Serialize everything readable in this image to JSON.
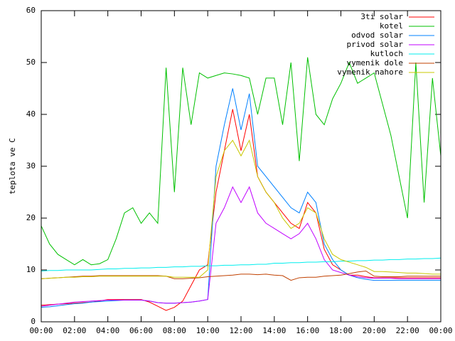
{
  "chart_data": {
    "type": "line",
    "ylabel": "teplota ve C",
    "x": [
      0,
      0.5,
      1,
      1.5,
      2,
      2.5,
      3,
      3.5,
      4,
      4.5,
      5,
      5.5,
      6,
      6.5,
      7,
      7.5,
      8,
      8.5,
      9,
      9.5,
      10,
      10.5,
      11,
      11.5,
      12,
      12.5,
      13,
      13.5,
      14,
      14.5,
      15,
      15.5,
      16,
      16.5,
      17,
      17.5,
      18,
      18.5,
      19,
      19.5,
      20,
      20.5,
      21,
      21.5,
      22,
      22.5,
      23,
      23.5,
      24
    ],
    "xlim": [
      0,
      24
    ],
    "xticks": [
      {
        "value": 0,
        "label": "00:00"
      },
      {
        "value": 2,
        "label": "02:00"
      },
      {
        "value": 4,
        "label": "04:00"
      },
      {
        "value": 6,
        "label": "06:00"
      },
      {
        "value": 8,
        "label": "08:00"
      },
      {
        "value": 10,
        "label": "10:00"
      },
      {
        "value": 12,
        "label": "12:00"
      },
      {
        "value": 14,
        "label": "14:00"
      },
      {
        "value": 16,
        "label": "16:00"
      },
      {
        "value": 18,
        "label": "18:00"
      },
      {
        "value": 20,
        "label": "20:00"
      },
      {
        "value": 22,
        "label": "22:00"
      },
      {
        "value": 24,
        "label": "00:00"
      }
    ],
    "ylim": [
      0,
      60
    ],
    "yticks": [
      0,
      10,
      20,
      30,
      40,
      50,
      60
    ],
    "legend": "upper right",
    "series": [
      {
        "name": "3ti solar",
        "color": "#ff0000",
        "values": [
          3.2,
          3.3,
          3.4,
          3.5,
          3.6,
          3.7,
          3.8,
          4.0,
          4.3,
          4.3,
          4.3,
          4.3,
          4.3,
          3.8,
          3.0,
          2.2,
          2.8,
          4.0,
          7.0,
          10.0,
          11.0,
          25.0,
          33.0,
          41.0,
          33.0,
          40.0,
          28.0,
          25.0,
          23.0,
          21.0,
          19.0,
          18.0,
          23.0,
          21.0,
          14.0,
          11.0,
          10.0,
          9.0,
          9.0,
          8.7,
          8.5,
          8.5,
          8.5,
          8.5,
          8.5,
          8.5,
          8.5,
          8.5,
          8.5
        ]
      },
      {
        "name": "kotel",
        "color": "#00c000",
        "values": [
          18.5,
          15.0,
          13.0,
          12.0,
          11.0,
          12.0,
          11.0,
          11.2,
          12.0,
          16.0,
          21.0,
          22.0,
          19.0,
          21.0,
          19.0,
          49.0,
          25.0,
          49.0,
          38.0,
          48.0,
          47.0,
          47.5,
          48.0,
          47.8,
          47.5,
          47.0,
          40.0,
          47.0,
          47.0,
          38.0,
          50.0,
          31.0,
          51.0,
          40.0,
          38.0,
          43.0,
          46.0,
          50.0,
          46.0,
          47.0,
          48.0,
          42.0,
          36.0,
          28.0,
          20.0,
          50.0,
          23.0,
          47.0,
          32.0
        ]
      },
      {
        "name": "odvod solar",
        "color": "#0080ff",
        "values": [
          2.8,
          2.9,
          3.1,
          3.3,
          3.5,
          3.6,
          3.8,
          3.9,
          4.0,
          4.1,
          4.2,
          4.2,
          4.2,
          4.0,
          3.7,
          3.6,
          3.6,
          3.7,
          3.8,
          4.0,
          4.3,
          30.0,
          38.0,
          45.0,
          37.0,
          44.0,
          30.0,
          28.0,
          26.0,
          24.0,
          22.0,
          21.0,
          25.0,
          23.0,
          15.0,
          12.0,
          10.0,
          9.0,
          8.5,
          8.2,
          8.0,
          8.0,
          8.0,
          8.0,
          8.0,
          8.0,
          8.0,
          8.0,
          8.0
        ]
      },
      {
        "name": "privod solar",
        "color": "#c000ff",
        "values": [
          3.0,
          3.2,
          3.4,
          3.6,
          3.8,
          3.9,
          4.0,
          4.1,
          4.2,
          4.2,
          4.2,
          4.2,
          4.2,
          4.0,
          3.7,
          3.6,
          3.6,
          3.7,
          3.8,
          4.0,
          4.3,
          19.0,
          22.0,
          26.0,
          23.0,
          26.0,
          21.0,
          19.0,
          18.0,
          17.0,
          16.0,
          17.0,
          19.0,
          16.0,
          12.0,
          10.0,
          9.5,
          9.0,
          8.7,
          8.5,
          8.4,
          8.4,
          8.4,
          8.3,
          8.3,
          8.3,
          8.3,
          8.3,
          8.3
        ]
      },
      {
        "name": "kutloch",
        "color": "#00eeee",
        "values": [
          9.8,
          9.9,
          9.9,
          10.0,
          10.0,
          10.0,
          10.0,
          10.1,
          10.2,
          10.2,
          10.3,
          10.3,
          10.4,
          10.4,
          10.5,
          10.5,
          10.6,
          10.6,
          10.7,
          10.7,
          10.8,
          10.8,
          10.9,
          10.9,
          11.0,
          11.0,
          11.1,
          11.1,
          11.3,
          11.3,
          11.4,
          11.4,
          11.5,
          11.5,
          11.6,
          11.6,
          11.7,
          11.7,
          11.8,
          11.8,
          11.9,
          11.9,
          12.0,
          12.0,
          12.1,
          12.1,
          12.2,
          12.2,
          12.3
        ]
      },
      {
        "name": "vymenik dole",
        "color": "#c04000",
        "values": [
          8.3,
          8.4,
          8.5,
          8.6,
          8.7,
          8.8,
          8.8,
          8.9,
          8.9,
          8.9,
          8.9,
          8.9,
          8.9,
          8.9,
          8.9,
          8.8,
          8.3,
          8.3,
          8.4,
          8.5,
          8.7,
          8.8,
          8.9,
          9.0,
          9.2,
          9.2,
          9.1,
          9.2,
          9.0,
          8.9,
          8.0,
          8.5,
          8.6,
          8.6,
          8.8,
          8.9,
          9.0,
          9.3,
          9.6,
          9.8,
          8.8,
          8.7,
          8.7,
          8.7,
          8.8,
          8.8,
          8.8,
          8.8,
          8.8
        ]
      },
      {
        "name": "vymenik nahore",
        "color": "#c8c800",
        "values": [
          8.3,
          8.4,
          8.5,
          8.6,
          8.6,
          8.7,
          8.7,
          8.8,
          8.8,
          8.8,
          8.8,
          8.8,
          8.8,
          8.8,
          8.8,
          8.8,
          8.6,
          8.6,
          8.6,
          8.6,
          10.0,
          28.0,
          33.0,
          35.0,
          32.0,
          35.0,
          28.0,
          25.0,
          23.0,
          20.0,
          18.0,
          19.0,
          22.0,
          21.0,
          16.0,
          13.0,
          12.0,
          11.5,
          11.0,
          10.5,
          9.7,
          9.7,
          9.6,
          9.5,
          9.4,
          9.4,
          9.3,
          9.2,
          9.2
        ]
      }
    ]
  }
}
